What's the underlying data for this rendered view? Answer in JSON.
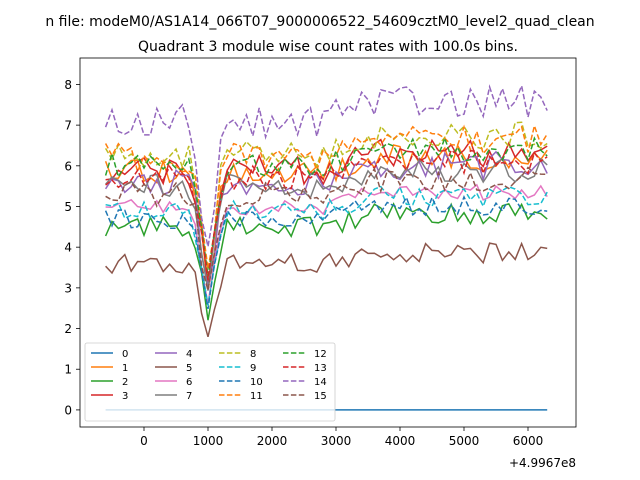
{
  "chart_data": {
    "type": "line",
    "suptitle": "n file: modeM0/AS1A14_066T07_9000006522_54609cztM0_level2_quad_clean",
    "title": "Quadrant 3 module wise count rates with 100.0s bins.",
    "xlabel": "",
    "ylabel": "",
    "x_offset_label": "+4.9967e8",
    "xlim": [
      -1000,
      6750
    ],
    "ylim": [
      -0.42,
      8.65
    ],
    "xticks": [
      0,
      1000,
      2000,
      3000,
      4000,
      5000,
      6000
    ],
    "xtick_labels": [
      "0",
      "1000",
      "2000",
      "3000",
      "4000",
      "5000",
      "6000"
    ],
    "yticks": [
      0,
      1,
      2,
      3,
      4,
      5,
      6,
      7,
      8
    ],
    "ytick_labels": [
      "0",
      "1",
      "2",
      "3",
      "4",
      "5",
      "6",
      "7",
      "8"
    ],
    "x_start": -600,
    "x_step": 100,
    "dip_x": 1000,
    "legend": {
      "location": "lower-left",
      "columns": 4
    },
    "series": [
      {
        "name": "0",
        "color": "#1f77b4",
        "dash": "solid",
        "base": 0.0,
        "noise": 0.0,
        "dip": 0.0
      },
      {
        "name": "1",
        "color": "#ff7f0e",
        "dash": "solid",
        "base": 5.8,
        "noise": 0.35,
        "dip": 2.8
      },
      {
        "name": "2",
        "color": "#2ca02c",
        "dash": "solid",
        "base": 4.5,
        "noise": 0.25,
        "dip": 2.3
      },
      {
        "name": "3",
        "color": "#d62728",
        "dash": "solid",
        "base": 5.9,
        "noise": 0.35,
        "dip": 2.9
      },
      {
        "name": "4",
        "color": "#9467bd",
        "dash": "solid",
        "base": 5.6,
        "noise": 0.35,
        "dip": 2.6
      },
      {
        "name": "5",
        "color": "#8c564b",
        "dash": "solid",
        "base": 3.6,
        "noise": 0.25,
        "dip": 1.85
      },
      {
        "name": "6",
        "color": "#e377c2",
        "dash": "solid",
        "base": 5.0,
        "noise": 0.2,
        "dip": 2.5
      },
      {
        "name": "7",
        "color": "#7f7f7f",
        "dash": "solid",
        "base": 5.5,
        "noise": 0.3,
        "dip": 2.7
      },
      {
        "name": "8",
        "color": "#bcbd22",
        "dash": "dashed",
        "base": 6.3,
        "noise": 0.35,
        "dip": 3.2
      },
      {
        "name": "9",
        "color": "#17becf",
        "dash": "dashed",
        "base": 4.9,
        "noise": 0.25,
        "dip": 2.5
      },
      {
        "name": "10",
        "color": "#1f77b4",
        "dash": "dashed",
        "base": 4.7,
        "noise": 0.25,
        "dip": 2.4
      },
      {
        "name": "11",
        "color": "#ff7f0e",
        "dash": "dashed",
        "base": 6.2,
        "noise": 0.35,
        "dip": 3.0
      },
      {
        "name": "12",
        "color": "#2ca02c",
        "dash": "dashed",
        "base": 6.0,
        "noise": 0.3,
        "dip": 3.0
      },
      {
        "name": "13",
        "color": "#d62728",
        "dash": "dashed",
        "base": 5.7,
        "noise": 0.3,
        "dip": 2.8
      },
      {
        "name": "14",
        "color": "#9467bd",
        "dash": "dashed",
        "base": 7.1,
        "noise": 0.4,
        "dip": 3.5
      },
      {
        "name": "15",
        "color": "#8c564b",
        "dash": "dashed",
        "base": 5.3,
        "noise": 0.3,
        "dip": 2.7
      }
    ]
  }
}
